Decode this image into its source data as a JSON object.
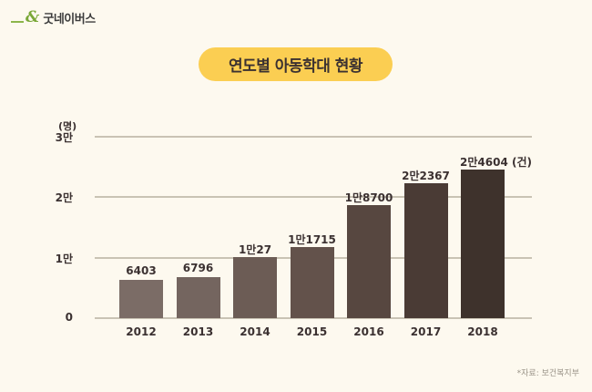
{
  "header": {
    "logo_text": "굿네이버스"
  },
  "title": "연도별 아동학대 현황",
  "source": "*자료: 보건복지부",
  "chart_data": {
    "type": "bar",
    "title": "연도별 아동학대 현황",
    "xlabel": "",
    "ylabel": "(명)",
    "unit_label": "(건)",
    "ylim": [
      0,
      30000
    ],
    "yticks": [
      0,
      10000,
      20000,
      30000
    ],
    "ytick_labels": [
      "0",
      "1만",
      "2만",
      "3만"
    ],
    "grid": true,
    "categories": [
      "2012",
      "2013",
      "2014",
      "2015",
      "2016",
      "2017",
      "2018"
    ],
    "values": [
      6403,
      6796,
      10027,
      11715,
      18700,
      22367,
      24604
    ],
    "value_labels": [
      "6403",
      "6796",
      "1만27",
      "1만1715",
      "1만8700",
      "2만2367",
      "2만4604 (건)"
    ],
    "colors": [
      "#7b6c66",
      "#74655f",
      "#6c5c55",
      "#63524b",
      "#574740",
      "#4a3b35",
      "#3e322c"
    ]
  }
}
